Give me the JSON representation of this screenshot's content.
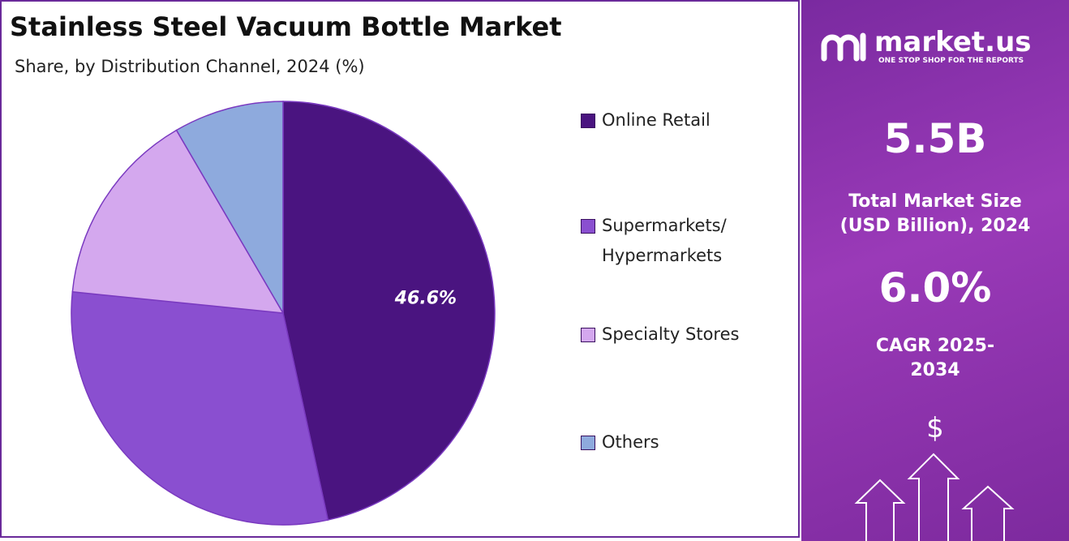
{
  "chart_data": {
    "type": "pie",
    "title": "Stainless Steel Vacuum Bottle Market",
    "subtitle": "Share, by Distribution Channel, 2024 (%)",
    "categories": [
      "Online Retail",
      "Supermarkets/ Hypermarkets",
      "Specialty Stores",
      "Others"
    ],
    "values": [
      46.6,
      30.0,
      15.0,
      8.4
    ],
    "value_labels": [
      "46.6%",
      null,
      null,
      null
    ],
    "colors": [
      "#4a1480",
      "#8a4fd0",
      "#d4a8ee",
      "#8eaadd"
    ]
  },
  "sidebar": {
    "brand": "market.us",
    "tagline": "ONE STOP SHOP FOR THE REPORTS",
    "market_size": "5.5B",
    "market_size_label": "Total Market Size (USD Billion), 2024",
    "cagr": "6.0%",
    "cagr_label": "CAGR 2025-2034",
    "icon": "$"
  }
}
